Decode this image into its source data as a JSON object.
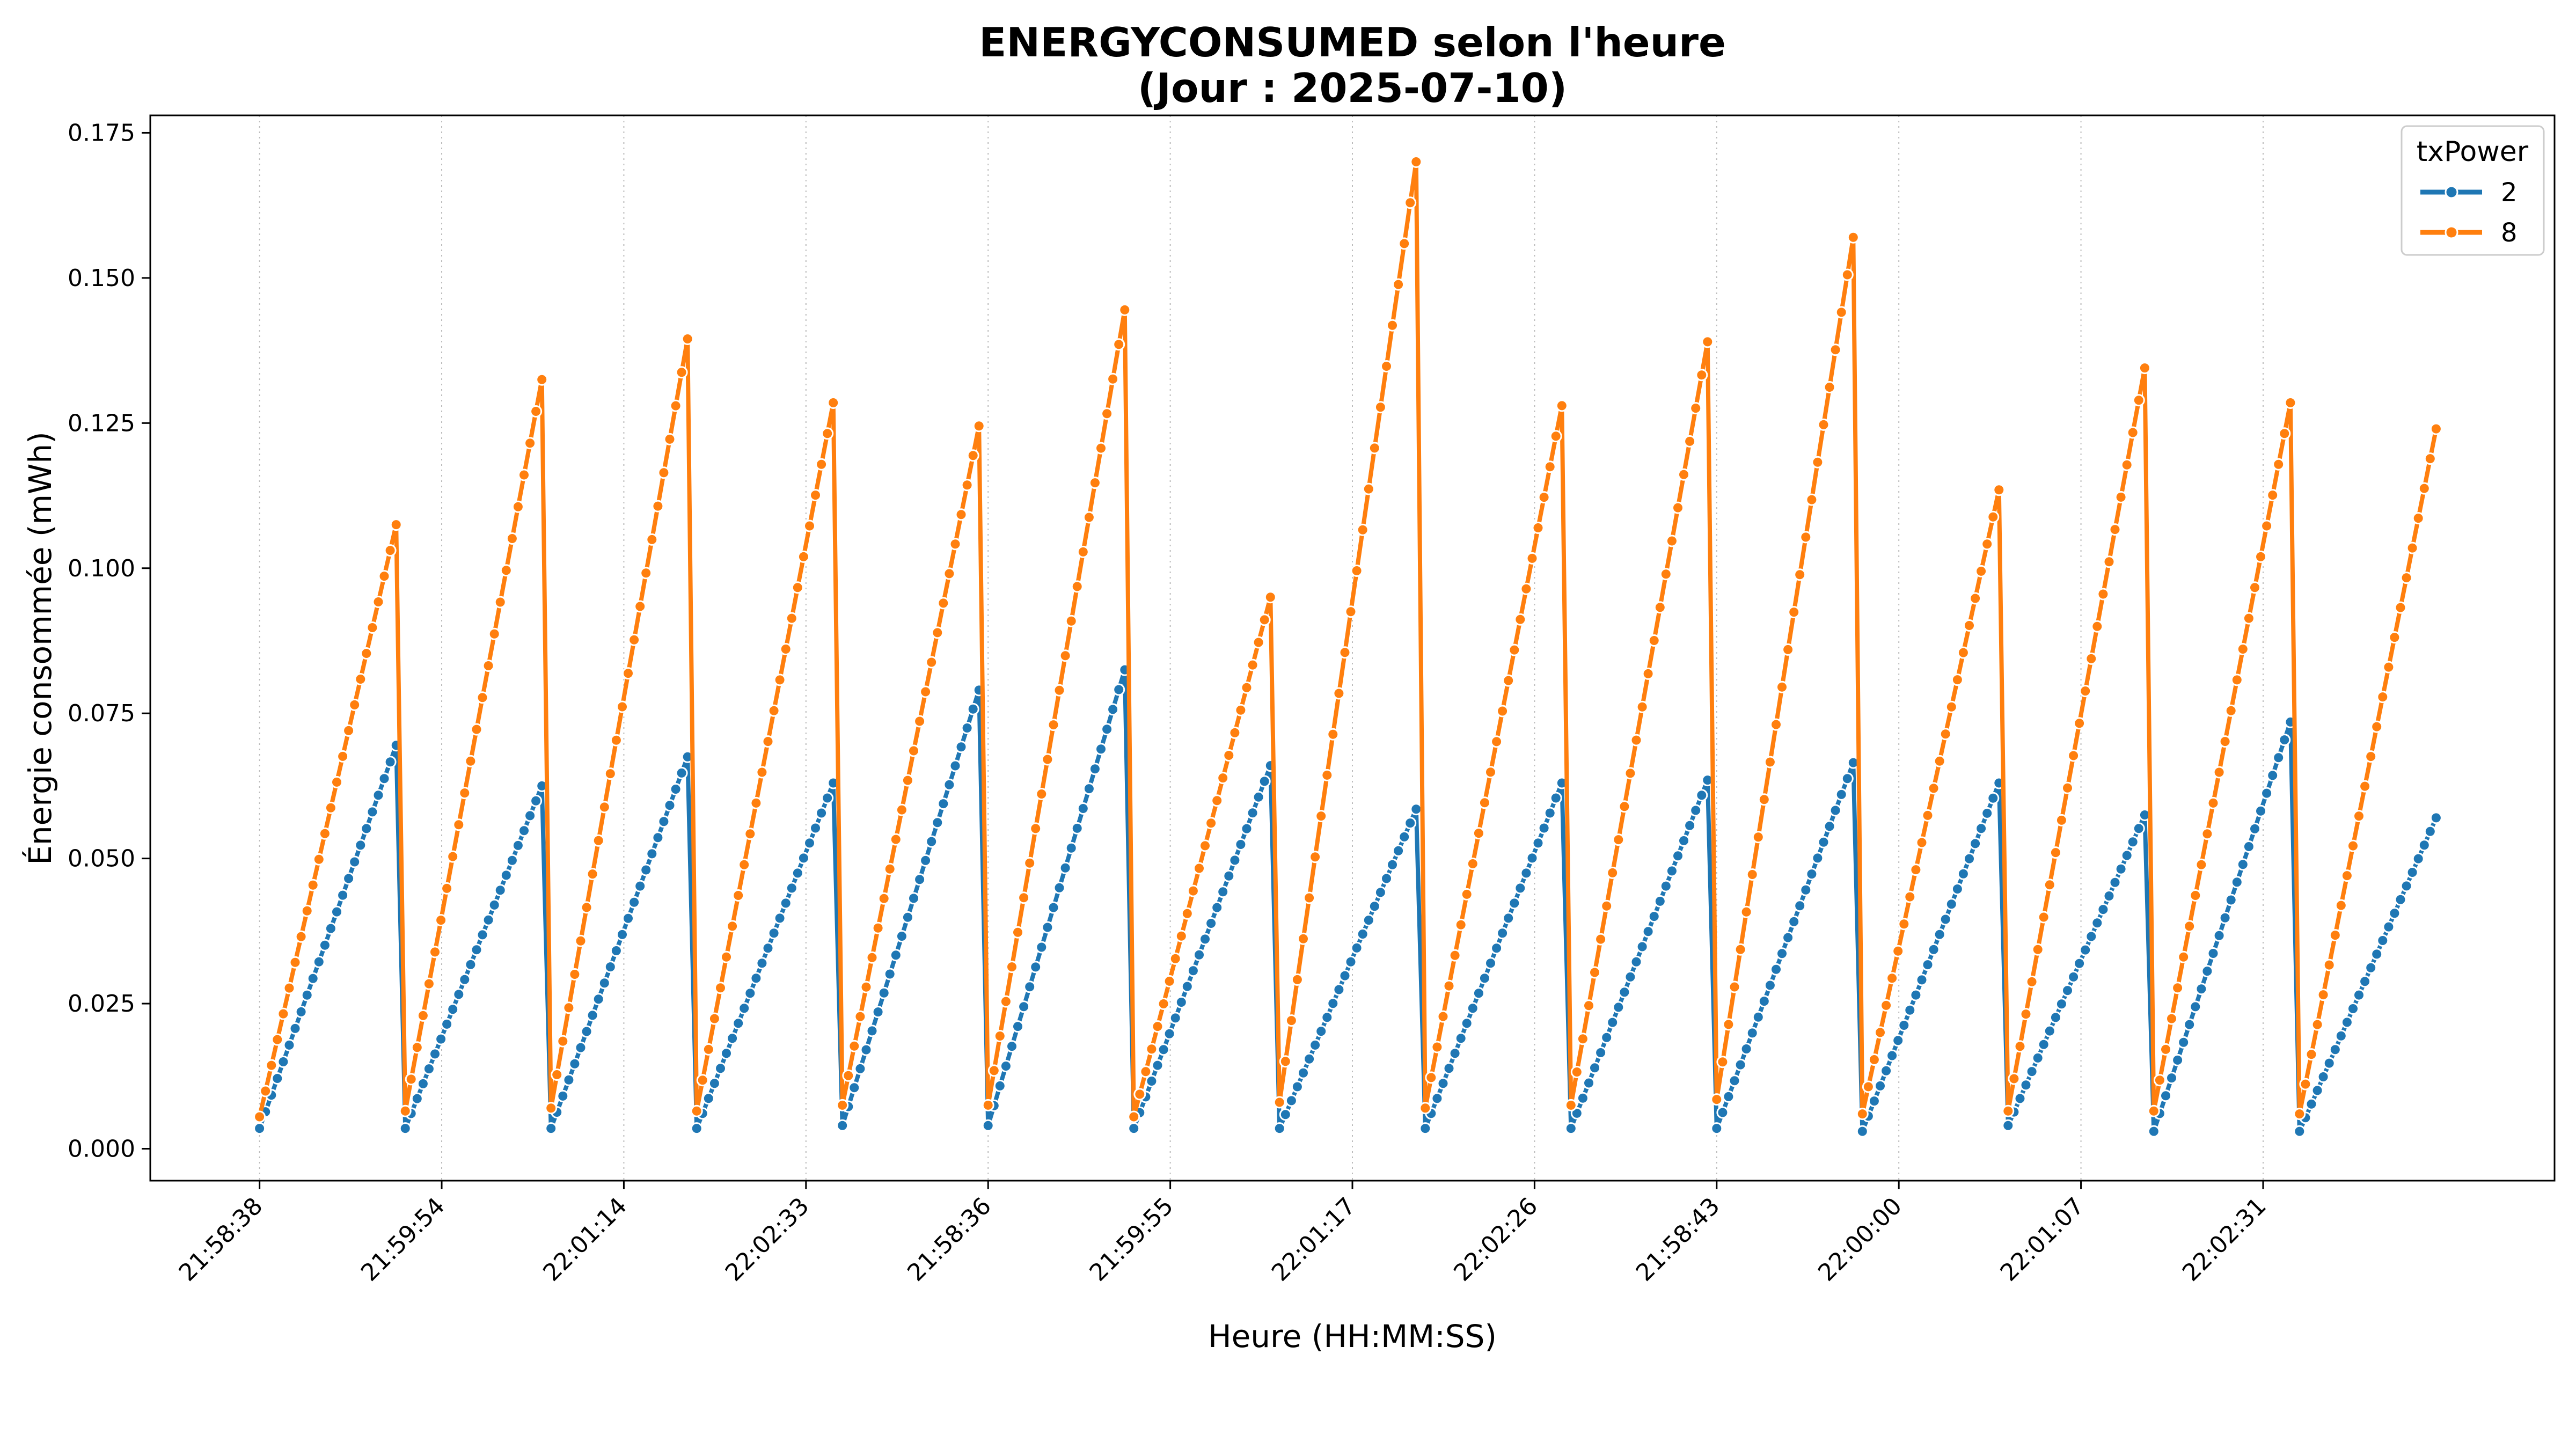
{
  "chart_data": {
    "type": "line",
    "title": "ENERGYCONSUMED selon l'heure",
    "subtitle": "(Jour : 2025-07-10)",
    "xlabel": "Heure (HH:MM:SS)",
    "ylabel": "Énergie consommée (mWh)",
    "x_ticks": [
      "21:58:38",
      "21:59:54",
      "22:01:14",
      "22:02:33",
      "21:58:36",
      "21:59:55",
      "22:01:17",
      "22:02:26",
      "21:58:43",
      "22:00:00",
      "22:01:07",
      "22:02:31"
    ],
    "y_ticks": [
      "0.000",
      "0.025",
      "0.050",
      "0.075",
      "0.100",
      "0.125",
      "0.150",
      "0.175"
    ],
    "ylim": [
      -0.0055,
      0.178
    ],
    "xlim": [
      -0.6,
      12.6
    ],
    "grid": "vertical dotted at x ticks",
    "legend": {
      "title": "txPower",
      "position": "top-right",
      "entries": [
        "2",
        "8"
      ]
    },
    "points_per_segment": 24,
    "series": [
      {
        "name": "2",
        "color": "#1f77b4",
        "segments": [
          {
            "x0": 0.0,
            "x1": 0.75,
            "y0": 0.0035,
            "y1": 0.0695
          },
          {
            "x0": 0.8,
            "x1": 1.55,
            "y0": 0.0035,
            "y1": 0.0625
          },
          {
            "x0": 1.6,
            "x1": 2.35,
            "y0": 0.0035,
            "y1": 0.0675
          },
          {
            "x0": 2.4,
            "x1": 3.15,
            "y0": 0.0035,
            "y1": 0.063
          },
          {
            "x0": 3.2,
            "x1": 3.95,
            "y0": 0.004,
            "y1": 0.079
          },
          {
            "x0": 4.0,
            "x1": 4.75,
            "y0": 0.004,
            "y1": 0.0825
          },
          {
            "x0": 4.8,
            "x1": 5.55,
            "y0": 0.0035,
            "y1": 0.066
          },
          {
            "x0": 5.6,
            "x1": 6.35,
            "y0": 0.0035,
            "y1": 0.0585
          },
          {
            "x0": 6.4,
            "x1": 7.15,
            "y0": 0.0035,
            "y1": 0.063
          },
          {
            "x0": 7.2,
            "x1": 7.95,
            "y0": 0.0035,
            "y1": 0.0635
          },
          {
            "x0": 8.0,
            "x1": 8.75,
            "y0": 0.0035,
            "y1": 0.0665
          },
          {
            "x0": 8.8,
            "x1": 9.55,
            "y0": 0.003,
            "y1": 0.063
          },
          {
            "x0": 9.6,
            "x1": 10.35,
            "y0": 0.004,
            "y1": 0.0575
          },
          {
            "x0": 10.4,
            "x1": 11.15,
            "y0": 0.003,
            "y1": 0.0735
          },
          {
            "x0": 11.2,
            "x1": 11.95,
            "y0": 0.003,
            "y1": 0.057
          }
        ]
      },
      {
        "name": "8",
        "color": "#ff7f0e",
        "segments": [
          {
            "x0": 0.0,
            "x1": 0.75,
            "y0": 0.0055,
            "y1": 0.1075
          },
          {
            "x0": 0.8,
            "x1": 1.55,
            "y0": 0.0065,
            "y1": 0.1325
          },
          {
            "x0": 1.6,
            "x1": 2.35,
            "y0": 0.007,
            "y1": 0.1395
          },
          {
            "x0": 2.4,
            "x1": 3.15,
            "y0": 0.0065,
            "y1": 0.1285
          },
          {
            "x0": 3.2,
            "x1": 3.95,
            "y0": 0.0075,
            "y1": 0.1245
          },
          {
            "x0": 4.0,
            "x1": 4.75,
            "y0": 0.0075,
            "y1": 0.1445
          },
          {
            "x0": 4.8,
            "x1": 5.55,
            "y0": 0.0055,
            "y1": 0.095
          },
          {
            "x0": 5.6,
            "x1": 6.35,
            "y0": 0.008,
            "y1": 0.17
          },
          {
            "x0": 6.4,
            "x1": 7.15,
            "y0": 0.007,
            "y1": 0.128
          },
          {
            "x0": 7.2,
            "x1": 7.95,
            "y0": 0.0075,
            "y1": 0.139
          },
          {
            "x0": 8.0,
            "x1": 8.75,
            "y0": 0.0085,
            "y1": 0.157
          },
          {
            "x0": 8.8,
            "x1": 9.55,
            "y0": 0.006,
            "y1": 0.1135
          },
          {
            "x0": 9.6,
            "x1": 10.35,
            "y0": 0.0065,
            "y1": 0.1345
          },
          {
            "x0": 10.4,
            "x1": 11.15,
            "y0": 0.0065,
            "y1": 0.1285
          },
          {
            "x0": 11.2,
            "x1": 11.95,
            "y0": 0.006,
            "y1": 0.124
          }
        ]
      }
    ]
  }
}
